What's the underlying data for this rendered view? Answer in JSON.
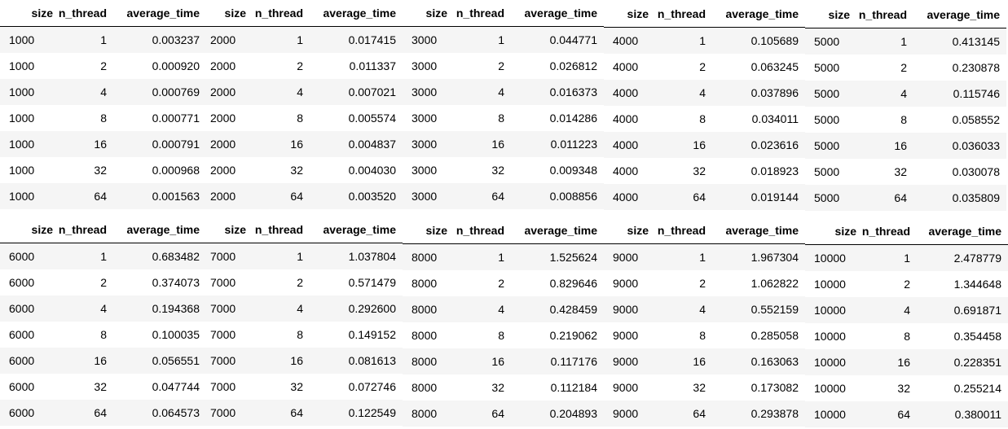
{
  "headers": {
    "size": "size",
    "n_thread": "n_thread",
    "average_time": "average_time"
  },
  "tables": [
    {
      "rows": [
        [
          "1000",
          "1",
          "0.003237"
        ],
        [
          "1000",
          "2",
          "0.000920"
        ],
        [
          "1000",
          "4",
          "0.000769"
        ],
        [
          "1000",
          "8",
          "0.000771"
        ],
        [
          "1000",
          "16",
          "0.000791"
        ],
        [
          "1000",
          "32",
          "0.000968"
        ],
        [
          "1000",
          "64",
          "0.001563"
        ]
      ]
    },
    {
      "rows": [
        [
          "2000",
          "1",
          "0.017415"
        ],
        [
          "2000",
          "2",
          "0.011337"
        ],
        [
          "2000",
          "4",
          "0.007021"
        ],
        [
          "2000",
          "8",
          "0.005574"
        ],
        [
          "2000",
          "16",
          "0.004837"
        ],
        [
          "2000",
          "32",
          "0.004030"
        ],
        [
          "2000",
          "64",
          "0.003520"
        ]
      ]
    },
    {
      "rows": [
        [
          "3000",
          "1",
          "0.044771"
        ],
        [
          "3000",
          "2",
          "0.026812"
        ],
        [
          "3000",
          "4",
          "0.016373"
        ],
        [
          "3000",
          "8",
          "0.014286"
        ],
        [
          "3000",
          "16",
          "0.011223"
        ],
        [
          "3000",
          "32",
          "0.009348"
        ],
        [
          "3000",
          "64",
          "0.008856"
        ]
      ]
    },
    {
      "rows": [
        [
          "4000",
          "1",
          "0.105689"
        ],
        [
          "4000",
          "2",
          "0.063245"
        ],
        [
          "4000",
          "4",
          "0.037896"
        ],
        [
          "4000",
          "8",
          "0.034011"
        ],
        [
          "4000",
          "16",
          "0.023616"
        ],
        [
          "4000",
          "32",
          "0.018923"
        ],
        [
          "4000",
          "64",
          "0.019144"
        ]
      ]
    },
    {
      "rows": [
        [
          "5000",
          "1",
          "0.413145"
        ],
        [
          "5000",
          "2",
          "0.230878"
        ],
        [
          "5000",
          "4",
          "0.115746"
        ],
        [
          "5000",
          "8",
          "0.058552"
        ],
        [
          "5000",
          "16",
          "0.036033"
        ],
        [
          "5000",
          "32",
          "0.030078"
        ],
        [
          "5000",
          "64",
          "0.035809"
        ]
      ]
    },
    {
      "rows": [
        [
          "6000",
          "1",
          "0.683482"
        ],
        [
          "6000",
          "2",
          "0.374073"
        ],
        [
          "6000",
          "4",
          "0.194368"
        ],
        [
          "6000",
          "8",
          "0.100035"
        ],
        [
          "6000",
          "16",
          "0.056551"
        ],
        [
          "6000",
          "32",
          "0.047744"
        ],
        [
          "6000",
          "64",
          "0.064573"
        ]
      ]
    },
    {
      "rows": [
        [
          "7000",
          "1",
          "1.037804"
        ],
        [
          "7000",
          "2",
          "0.571479"
        ],
        [
          "7000",
          "4",
          "0.292600"
        ],
        [
          "7000",
          "8",
          "0.149152"
        ],
        [
          "7000",
          "16",
          "0.081613"
        ],
        [
          "7000",
          "32",
          "0.072746"
        ],
        [
          "7000",
          "64",
          "0.122549"
        ]
      ]
    },
    {
      "rows": [
        [
          "8000",
          "1",
          "1.525624"
        ],
        [
          "8000",
          "2",
          "0.829646"
        ],
        [
          "8000",
          "4",
          "0.428459"
        ],
        [
          "8000",
          "8",
          "0.219062"
        ],
        [
          "8000",
          "16",
          "0.117176"
        ],
        [
          "8000",
          "32",
          "0.112184"
        ],
        [
          "8000",
          "64",
          "0.204893"
        ]
      ]
    },
    {
      "rows": [
        [
          "9000",
          "1",
          "1.967304"
        ],
        [
          "9000",
          "2",
          "1.062822"
        ],
        [
          "9000",
          "4",
          "0.552159"
        ],
        [
          "9000",
          "8",
          "0.285058"
        ],
        [
          "9000",
          "16",
          "0.163063"
        ],
        [
          "9000",
          "32",
          "0.173082"
        ],
        [
          "9000",
          "64",
          "0.293878"
        ]
      ]
    },
    {
      "rows": [
        [
          "10000",
          "1",
          "2.478779"
        ],
        [
          "10000",
          "2",
          "1.344648"
        ],
        [
          "10000",
          "4",
          "0.691871"
        ],
        [
          "10000",
          "8",
          "0.354458"
        ],
        [
          "10000",
          "16",
          "0.228351"
        ],
        [
          "10000",
          "32",
          "0.255214"
        ],
        [
          "10000",
          "64",
          "0.380011"
        ]
      ]
    }
  ]
}
